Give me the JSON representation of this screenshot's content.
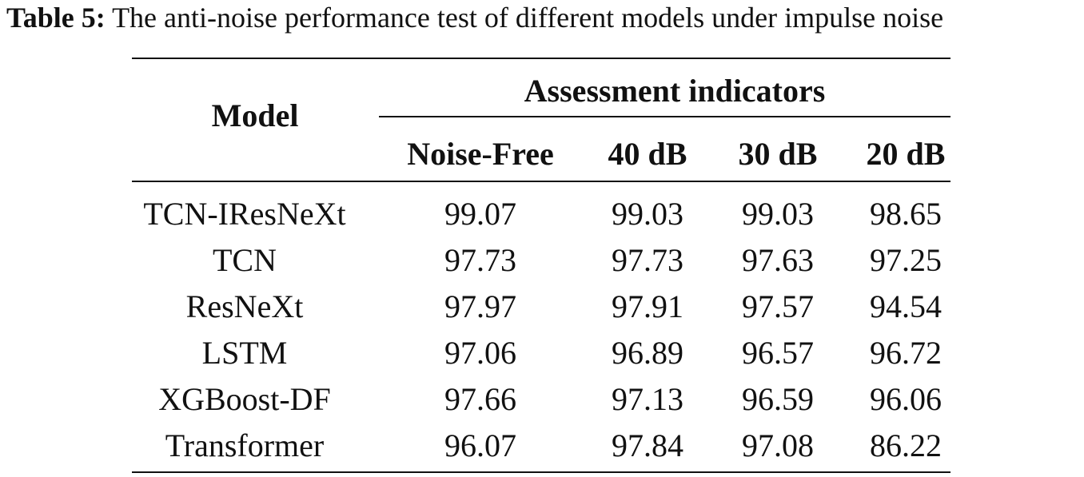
{
  "caption": {
    "label": "Table 5:",
    "text": "The anti-noise performance test of different models under impulse noise"
  },
  "table": {
    "model_header": "Model",
    "group_header": "Assessment indicators",
    "columns": [
      "Noise-Free",
      "40 dB",
      "30 dB",
      "20 dB"
    ],
    "rows": [
      {
        "model": "TCN-IResNeXt",
        "values": [
          "99.07",
          "99.03",
          "99.03",
          "98.65"
        ]
      },
      {
        "model": "TCN",
        "values": [
          "97.73",
          "97.73",
          "97.63",
          "97.25"
        ]
      },
      {
        "model": "ResNeXt",
        "values": [
          "97.97",
          "97.91",
          "97.57",
          "94.54"
        ]
      },
      {
        "model": "LSTM",
        "values": [
          "97.06",
          "96.89",
          "96.57",
          "96.72"
        ]
      },
      {
        "model": "XGBoost-DF",
        "values": [
          "97.66",
          "97.13",
          "96.59",
          "96.06"
        ]
      },
      {
        "model": "Transformer",
        "values": [
          "96.07",
          "97.84",
          "97.08",
          "86.22"
        ]
      }
    ]
  }
}
